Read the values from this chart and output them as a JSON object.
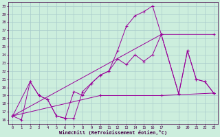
{
  "xlabel": "Windchill (Refroidissement éolien,°C)",
  "background_color": "#cceedd",
  "grid_color": "#aacccc",
  "line_color": "#990099",
  "xlim": [
    -0.5,
    23.5
  ],
  "ylim": [
    15.5,
    30.5
  ],
  "xticks": [
    0,
    1,
    2,
    3,
    4,
    5,
    6,
    7,
    8,
    9,
    10,
    11,
    12,
    13,
    14,
    15,
    16,
    17,
    19,
    20,
    21,
    22,
    23
  ],
  "yticks": [
    16,
    17,
    18,
    19,
    20,
    21,
    22,
    23,
    24,
    25,
    26,
    27,
    28,
    29,
    30
  ],
  "lines": [
    {
      "x": [
        0,
        1,
        2,
        3,
        4,
        5,
        6,
        7,
        8,
        9,
        10,
        11,
        12,
        13,
        14,
        15,
        16,
        17,
        19,
        20,
        21,
        22,
        23
      ],
      "y": [
        16.5,
        16.0,
        20.7,
        19.0,
        18.5,
        16.5,
        16.2,
        16.2,
        19.5,
        20.5,
        21.5,
        22.0,
        24.5,
        27.5,
        28.8,
        29.3,
        30.0,
        26.5,
        19.2,
        24.5,
        21.0,
        20.7,
        19.3
      ]
    },
    {
      "x": [
        0,
        2,
        3,
        4,
        5,
        6,
        7,
        8,
        9,
        10,
        11,
        12,
        13,
        14,
        15,
        16,
        17,
        19,
        20,
        21,
        22,
        23
      ],
      "y": [
        16.5,
        20.7,
        19.0,
        18.5,
        16.5,
        16.2,
        19.5,
        19.0,
        20.5,
        21.5,
        22.0,
        23.5,
        22.8,
        24.0,
        23.2,
        24.0,
        26.5,
        19.2,
        24.5,
        21.0,
        20.7,
        19.3
      ]
    },
    {
      "x": [
        0,
        17,
        23
      ],
      "y": [
        16.5,
        26.5,
        26.5
      ]
    },
    {
      "x": [
        0,
        10,
        17,
        23
      ],
      "y": [
        16.5,
        19.0,
        19.0,
        19.3
      ]
    }
  ]
}
